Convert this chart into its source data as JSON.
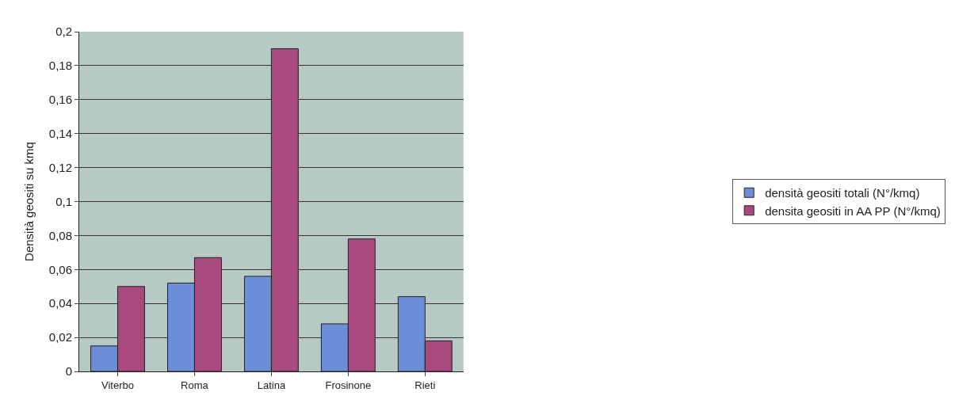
{
  "chart_data": {
    "type": "bar",
    "ylabel": "Densità geositi su kmq",
    "categories": [
      "Viterbo",
      "Roma",
      "Latina",
      "Frosinone",
      "Rieti"
    ],
    "series": [
      {
        "name": "densità geositi totali (N°/kmq)",
        "color": "#6c8ed6",
        "values": [
          0.015,
          0.052,
          0.056,
          0.028,
          0.044
        ]
      },
      {
        "name": "densita geositi in AA PP (N°/kmq)",
        "color": "#a84a7e",
        "values": [
          0.05,
          0.067,
          0.19,
          0.078,
          0.018
        ]
      }
    ],
    "ylim": [
      0,
      0.2
    ],
    "yticks": [
      0,
      {
        "value": 0.02,
        "label": "0,02"
      },
      {
        "value": 0.04,
        "label": "0,04"
      },
      {
        "value": 0.06,
        "label": "0,06"
      },
      {
        "value": 0.08,
        "label": "0,08"
      },
      {
        "value": 0.1,
        "label": "0,1"
      },
      {
        "value": 0.12,
        "label": "0,12"
      },
      {
        "value": 0.14,
        "label": "0,14"
      },
      {
        "value": 0.16,
        "label": "0,16"
      },
      {
        "value": 0.18,
        "label": "0,18"
      },
      {
        "value": 0.2,
        "label": "0,2"
      }
    ],
    "grid": "y",
    "legend": "right"
  }
}
